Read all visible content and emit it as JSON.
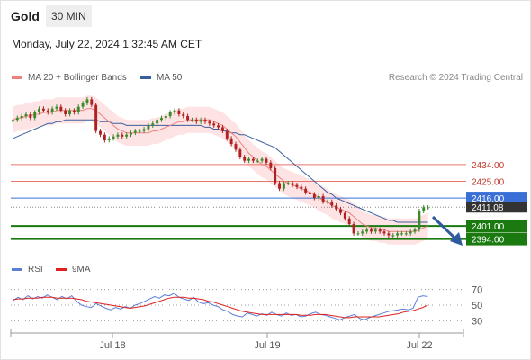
{
  "header": {
    "symbol": "Gold",
    "timeframe": "30 MIN"
  },
  "timestamp": "Monday, July 22, 2024 1:32:45 AM CET",
  "legend": {
    "items": [
      {
        "label": "MA 20 + Bollinger Bands",
        "color": "#f08080"
      },
      {
        "label": "MA 50",
        "color": "#3a5f9f"
      }
    ],
    "credit": "Research © 2024 Trading Central"
  },
  "rsi_legend": {
    "items": [
      {
        "label": "RSI",
        "color": "#5b7fd6"
      },
      {
        "label": "9MA",
        "color": "#e02020"
      }
    ]
  },
  "colors": {
    "resistance": "#e8736b",
    "pivot": "#3a6fd8",
    "support": "#1a7a10",
    "last_price": "#333333",
    "band_fill": "#fde3e3",
    "candle_up": "#3a8a2a",
    "candle_down": "#b02020",
    "arrow": "#2f5b9e"
  },
  "chart_data": [
    {
      "type": "candlestick",
      "title": "",
      "x_ticks": [
        "Jul 18",
        "Jul 19",
        "Jul 22"
      ],
      "ylim": [
        2388,
        2475
      ],
      "levels": [
        {
          "label": "2434.00",
          "value": 2434.0,
          "kind": "resistance"
        },
        {
          "label": "2425.00",
          "value": 2425.0,
          "kind": "resistance"
        },
        {
          "label": "2416.00",
          "value": 2416.0,
          "kind": "pivot"
        },
        {
          "label": "2401.00",
          "value": 2401.0,
          "kind": "support"
        },
        {
          "label": "2394.00",
          "value": 2394.0,
          "kind": "support"
        }
      ],
      "last_price": {
        "label": "2411.08",
        "value": 2411.08
      },
      "close": [
        2458,
        2459,
        2460,
        2461,
        2459,
        2462,
        2464,
        2463,
        2462,
        2464,
        2465,
        2463,
        2461,
        2463,
        2462,
        2465,
        2467,
        2469,
        2466,
        2452,
        2450,
        2447,
        2448,
        2449,
        2450,
        2449,
        2450,
        2451,
        2452,
        2452,
        2453,
        2455,
        2456,
        2458,
        2459,
        2460,
        2462,
        2463,
        2461,
        2460,
        2458,
        2458,
        2457,
        2458,
        2457,
        2456,
        2455,
        2454,
        2452,
        2448,
        2445,
        2442,
        2438,
        2436,
        2437,
        2436,
        2436,
        2437,
        2435,
        2432,
        2424,
        2421,
        2424,
        2424,
        2423,
        2422,
        2421,
        2419,
        2418,
        2416,
        2417,
        2414,
        2414,
        2412,
        2410,
        2408,
        2405,
        2402,
        2397,
        2397,
        2398,
        2399,
        2398,
        2399,
        2398,
        2397,
        2396,
        2396,
        2397,
        2397,
        2397,
        2398,
        2399,
        2409,
        2411,
        2411
      ],
      "ma20": [
        2458,
        2459,
        2459,
        2460,
        2460,
        2461,
        2461,
        2462,
        2462,
        2462,
        2463,
        2463,
        2463,
        2463,
        2463,
        2463,
        2463,
        2464,
        2464,
        2463,
        2461,
        2459,
        2457,
        2455,
        2453,
        2452,
        2451,
        2451,
        2451,
        2451,
        2451,
        2451,
        2452,
        2452,
        2453,
        2454,
        2455,
        2456,
        2457,
        2457,
        2458,
        2458,
        2458,
        2458,
        2458,
        2458,
        2457,
        2456,
        2455,
        2453,
        2451,
        2449,
        2446,
        2443,
        2440,
        2438,
        2436,
        2434,
        2433,
        2431,
        2429,
        2427,
        2425,
        2424,
        2423,
        2422,
        2421,
        2420,
        2419,
        2418,
        2416,
        2415,
        2414,
        2412,
        2411,
        2410,
        2409,
        2408,
        2406,
        2404,
        2402,
        2401,
        2400,
        2400,
        2399,
        2399,
        2398,
        2398,
        2398,
        2398,
        2398,
        2398,
        2398,
        2399,
        2400,
        2401
      ],
      "ma50": [
        2448,
        2449,
        2450,
        2451,
        2452,
        2453,
        2454,
        2455,
        2456,
        2456,
        2457,
        2457,
        2458,
        2458,
        2458,
        2458,
        2458,
        2458,
        2458,
        2458,
        2457,
        2457,
        2457,
        2456,
        2456,
        2456,
        2455,
        2455,
        2455,
        2455,
        2455,
        2455,
        2455,
        2455,
        2455,
        2455,
        2455,
        2455,
        2455,
        2455,
        2455,
        2455,
        2455,
        2455,
        2454,
        2454,
        2453,
        2453,
        2452,
        2452,
        2451,
        2451,
        2450,
        2450,
        2449,
        2448,
        2447,
        2446,
        2445,
        2444,
        2443,
        2441,
        2439,
        2437,
        2435,
        2433,
        2431,
        2429,
        2427,
        2425,
        2423,
        2421,
        2419,
        2418,
        2416,
        2415,
        2414,
        2413,
        2412,
        2411,
        2410,
        2409,
        2408,
        2407,
        2406,
        2405,
        2404,
        2404,
        2403,
        2403,
        2403,
        2403,
        2403,
        2403,
        2403,
        2403
      ],
      "band_width": 7
    },
    {
      "type": "line",
      "title": "",
      "series": [
        {
          "name": "RSI",
          "values": [
            56,
            60,
            57,
            62,
            58,
            61,
            59,
            63,
            60,
            57,
            61,
            58,
            62,
            55,
            50,
            48,
            47,
            52,
            49,
            46,
            44,
            47,
            45,
            48,
            46,
            50,
            52,
            55,
            58,
            61,
            59,
            63,
            62,
            65,
            60,
            58,
            56,
            60,
            54,
            52,
            53,
            50,
            48,
            44,
            42,
            38,
            36,
            35,
            40,
            38,
            36,
            39,
            37,
            41,
            38,
            36,
            40,
            37,
            38,
            35,
            36,
            39,
            41,
            38,
            37,
            35,
            33,
            31,
            34,
            36,
            38,
            33,
            31,
            34,
            36,
            38,
            40,
            42,
            43,
            44,
            45,
            44,
            46,
            60,
            62,
            61
          ]
        },
        {
          "name": "9MA",
          "values": [
            57,
            58,
            58,
            59,
            59,
            59,
            60,
            60,
            60,
            59,
            59,
            59,
            59,
            58,
            57,
            55,
            54,
            53,
            52,
            51,
            50,
            49,
            48,
            47,
            46,
            47,
            48,
            49,
            51,
            53,
            55,
            57,
            59,
            60,
            60,
            60,
            59,
            59,
            58,
            57,
            55,
            54,
            52,
            50,
            48,
            46,
            44,
            42,
            41,
            40,
            39,
            38,
            38,
            38,
            38,
            38,
            38,
            38,
            38,
            37,
            37,
            37,
            38,
            38,
            38,
            37,
            36,
            35,
            34,
            34,
            35,
            35,
            35,
            35,
            35,
            35,
            36,
            37,
            38,
            39,
            41,
            42,
            43,
            45,
            47,
            50
          ]
        }
      ],
      "y_ticks": [
        70,
        50,
        30
      ],
      "ylim": [
        20,
        80
      ]
    }
  ]
}
